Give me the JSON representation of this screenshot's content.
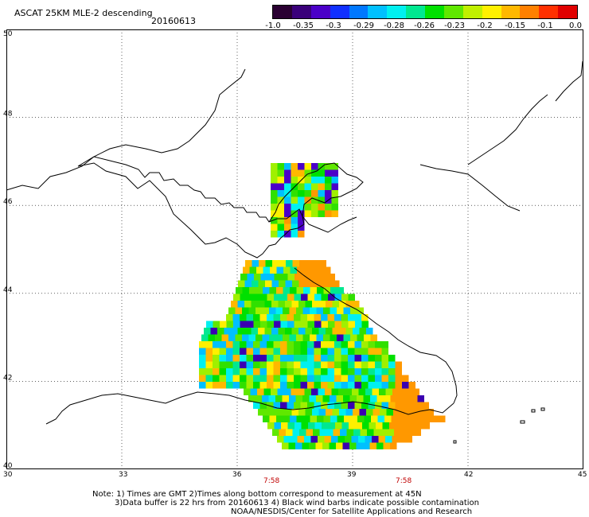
{
  "header": {
    "title": "ASCAT 25KM MLE-2 descending",
    "date": "20160613"
  },
  "colorbar": {
    "labels": [
      "-1.0",
      "-0.35",
      "-0.3",
      "-0.29",
      "-0.28",
      "-0.26",
      "-0.23",
      "-0.2",
      "-0.15",
      "-0.1",
      "0.0"
    ],
    "colors": [
      "#2a0032",
      "#3a007a",
      "#4b00c8",
      "#1030ff",
      "#0078ff",
      "#00c0ff",
      "#00f0f0",
      "#00e890",
      "#00e000",
      "#60e800",
      "#c0f000",
      "#fff000",
      "#ffb800",
      "#ff8000",
      "#ff3000",
      "#e00000"
    ]
  },
  "map": {
    "lat_labels": [
      "50",
      "48",
      "46",
      "44",
      "42",
      "40"
    ],
    "lon_labels": [
      "30",
      "33",
      "36",
      "39",
      "42",
      "45"
    ],
    "time_labels": [
      "7:58",
      "7:58"
    ],
    "land_color": "#ffffff",
    "coast_color": "#000000",
    "grid_color": "#000000"
  },
  "notes": {
    "line1": "Note: 1) Times are GMT 2)Times along bottom correspond to measurement at 45N",
    "line2": "3)Data buffer is 22 hrs from 20160613 4) Black wind barbs indicate possible contamination",
    "line3": "NOAA/NESDIS/Center for Satellite Applications and Research"
  }
}
